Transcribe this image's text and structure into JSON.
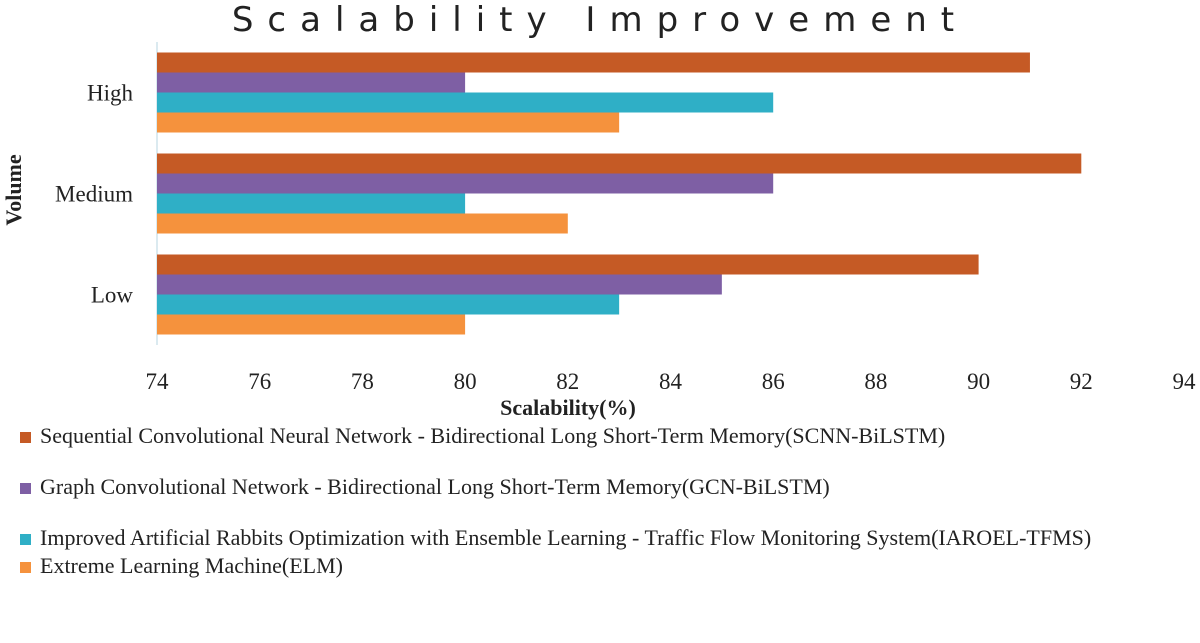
{
  "chart_data": {
    "type": "bar",
    "orientation": "horizontal",
    "title": "Scalability Improvement",
    "xlabel": "Scalability(%)",
    "ylabel": "Volume",
    "categories": [
      "High",
      "Medium",
      "Low"
    ],
    "xlim": [
      74,
      94
    ],
    "xticks": [
      74,
      76,
      78,
      80,
      82,
      84,
      86,
      88,
      90,
      92,
      94
    ],
    "grid": false,
    "legend_position": "bottom",
    "series": [
      {
        "name": "Sequential Convolutional Neural Network - Bidirectional Long Short-Term Memory(SCNN-BiLSTM)",
        "color": "#C55A25",
        "values": [
          91,
          92,
          90
        ]
      },
      {
        "name": "Graph Convolutional Network - Bidirectional Long Short-Term Memory(GCN-BiLSTM)",
        "color": "#7E5FA4",
        "values": [
          80,
          86,
          85
        ]
      },
      {
        "name": "Improved Artificial Rabbits Optimization with Ensemble Learning - Traffic Flow Monitoring System(IAROEL-TFMS)",
        "color": "#2FAFC6",
        "values": [
          86,
          80,
          83
        ]
      },
      {
        "name": "Extreme Learning Machine(ELM)",
        "color": "#F5923D",
        "values": [
          83,
          82,
          80
        ]
      }
    ]
  }
}
